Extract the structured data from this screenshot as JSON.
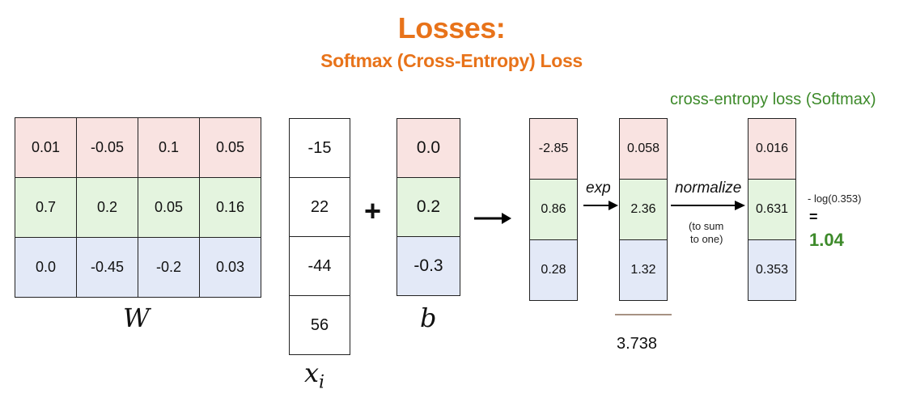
{
  "colors": {
    "title": "#e8731a",
    "accent_green": "#3d8a2a",
    "row_red": "#f9e3e1",
    "row_green": "#e4f4df",
    "row_blue": "#e3e9f7"
  },
  "heading": {
    "title": "Losses:",
    "subtitle": "Softmax (Cross-Entropy) Loss"
  },
  "ce_label": "cross-entropy loss (Softmax)",
  "W": {
    "label": "W",
    "rows": [
      [
        "0.01",
        "-0.05",
        "0.1",
        "0.05"
      ],
      [
        "0.7",
        "0.2",
        "0.05",
        "0.16"
      ],
      [
        "0.0",
        "-0.45",
        "-0.2",
        "0.03"
      ]
    ]
  },
  "x": {
    "label_main": "x",
    "label_sub": "i",
    "values": [
      "-15",
      "22",
      "-44",
      "56"
    ]
  },
  "plus": "+",
  "b": {
    "label": "b",
    "values": [
      "0.0",
      "0.2",
      "-0.3"
    ]
  },
  "scores": [
    "-2.85",
    "0.86",
    "0.28"
  ],
  "exp": {
    "label": "exp",
    "values": [
      "0.058",
      "2.36",
      "1.32"
    ],
    "sum": "3.738"
  },
  "normalize": {
    "label": "normalize",
    "note_line1": "(to sum",
    "note_line2": "to one)"
  },
  "probs": [
    "0.016",
    "0.631",
    "0.353"
  ],
  "loss": {
    "expr": "- log(0.353)",
    "eq": "=",
    "value": "1.04"
  }
}
